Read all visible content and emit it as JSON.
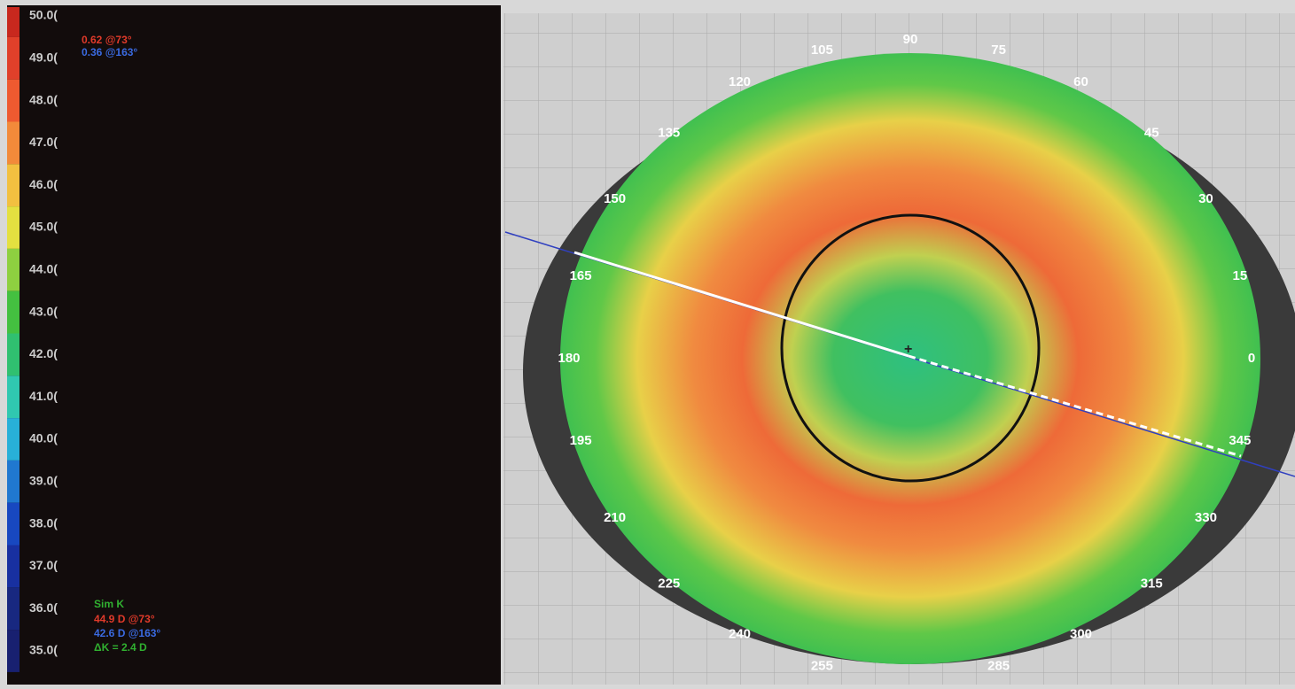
{
  "legend": {
    "scale": [
      {
        "label": "50.0(",
        "color": "#c8281e"
      },
      {
        "label": "49.0(",
        "color": "#e0402a"
      },
      {
        "label": "48.0(",
        "color": "#ee5a30"
      },
      {
        "label": "47.0(",
        "color": "#f28a3a"
      },
      {
        "label": "46.0(",
        "color": "#f2c040"
      },
      {
        "label": "45.0(",
        "color": "#e4e040"
      },
      {
        "label": "44.0(",
        "color": "#8ed040"
      },
      {
        "label": "43.0(",
        "color": "#44c040"
      },
      {
        "label": "42.0(",
        "color": "#30c070"
      },
      {
        "label": "41.0(",
        "color": "#30c8b0"
      },
      {
        "label": "40.0(",
        "color": "#28b0d8"
      },
      {
        "label": "39.0(",
        "color": "#2078d0"
      },
      {
        "label": "38.0(",
        "color": "#1848c0"
      },
      {
        "label": "37.0(",
        "color": "#1830a0"
      },
      {
        "label": "36.0(",
        "color": "#182880"
      },
      {
        "label": "35.0(",
        "color": "#182070"
      }
    ]
  },
  "astigmatism": {
    "steep": "0.62 @73°",
    "flat": "0.36 @163°"
  },
  "sim_k": {
    "title": "Sim K",
    "steep": "44.9 D @73°",
    "flat": "42.6 D @163°",
    "delta": "ΔK = 2.4 D"
  },
  "angles": [
    "90",
    "105",
    "75",
    "120",
    "60",
    "135",
    "45",
    "150",
    "30",
    "165",
    "15",
    "180",
    "0",
    "195",
    "345",
    "210",
    "330",
    "225",
    "315",
    "240",
    "300",
    "255",
    "285"
  ]
}
